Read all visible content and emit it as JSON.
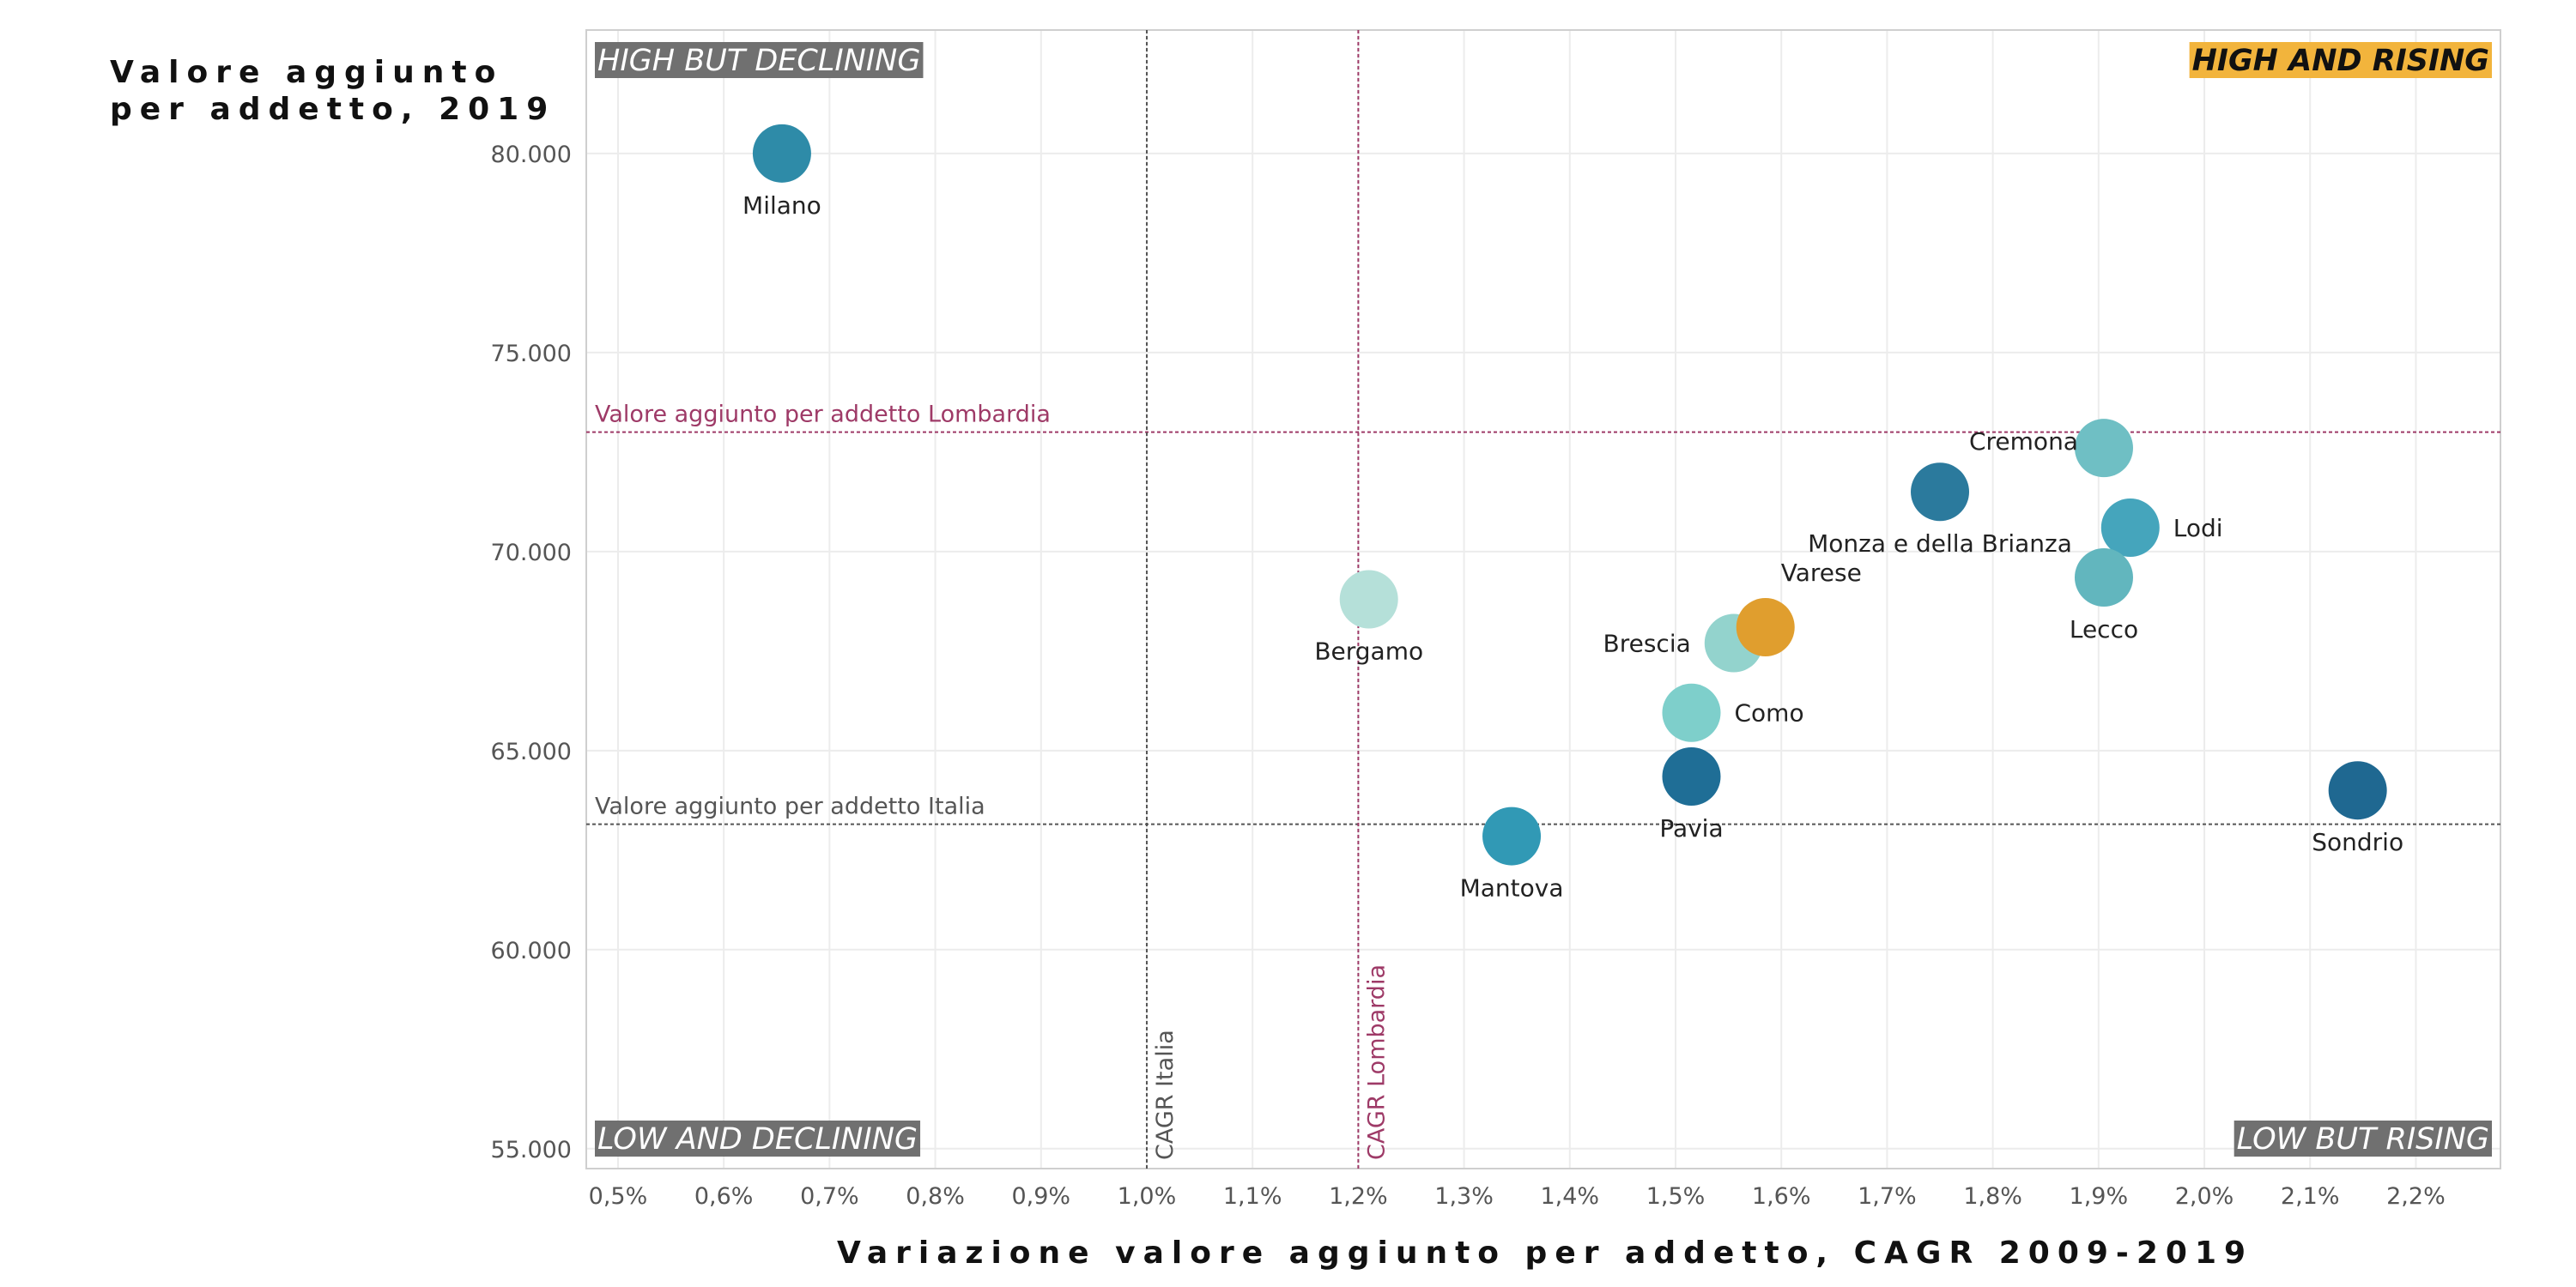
{
  "chart_data": {
    "type": "scatter",
    "xlabel": "Variazione valore aggiunto per addetto, CAGR 2009-2019",
    "ylabel_lines": [
      "Valore aggiunto",
      "per addetto, 2019"
    ],
    "xlim": [
      0.47,
      2.28
    ],
    "ylim": [
      54.5,
      83.1
    ],
    "x_ticks": [
      {
        "value": 0.5,
        "label": "0,5%"
      },
      {
        "value": 0.6,
        "label": "0,6%"
      },
      {
        "value": 0.7,
        "label": "0,7%"
      },
      {
        "value": 0.8,
        "label": "0,8%"
      },
      {
        "value": 0.9,
        "label": "0,9%"
      },
      {
        "value": 1.0,
        "label": "1,0%"
      },
      {
        "value": 1.1,
        "label": "1,1%"
      },
      {
        "value": 1.2,
        "label": "1,2%"
      },
      {
        "value": 1.3,
        "label": "1,3%"
      },
      {
        "value": 1.4,
        "label": "1,4%"
      },
      {
        "value": 1.5,
        "label": "1,5%"
      },
      {
        "value": 1.6,
        "label": "1,6%"
      },
      {
        "value": 1.7,
        "label": "1,7%"
      },
      {
        "value": 1.8,
        "label": "1,8%"
      },
      {
        "value": 1.9,
        "label": "1,9%"
      },
      {
        "value": 2.0,
        "label": "2,0%"
      },
      {
        "value": 2.1,
        "label": "2,1%"
      },
      {
        "value": 2.2,
        "label": "2,2%"
      }
    ],
    "y_ticks": [
      {
        "value": 55,
        "label": "55.000"
      },
      {
        "value": 60,
        "label": "60.000"
      },
      {
        "value": 65,
        "label": "65.000"
      },
      {
        "value": 70,
        "label": "70.000"
      },
      {
        "value": 75,
        "label": "75.000"
      },
      {
        "value": 80,
        "label": "80.000"
      }
    ],
    "grid": true,
    "points": [
      {
        "name": "Milano",
        "x": 0.655,
        "y": 80.0,
        "color": "#2E8BA8",
        "label_pos": "below"
      },
      {
        "name": "Bergamo",
        "x": 1.21,
        "y": 68.8,
        "color": "#B5E0D9",
        "label_pos": "below"
      },
      {
        "name": "Brescia",
        "x": 1.555,
        "y": 67.7,
        "color": "#93D3CD",
        "label_pos": "left"
      },
      {
        "name": "Varese",
        "x": 1.585,
        "y": 68.1,
        "color": "#E09E2E",
        "label_pos": "above-right"
      },
      {
        "name": "Como",
        "x": 1.515,
        "y": 65.95,
        "color": "#7ECFCB",
        "label_pos": "right"
      },
      {
        "name": "Pavia",
        "x": 1.515,
        "y": 64.35,
        "color": "#1F6E96",
        "label_pos": "below"
      },
      {
        "name": "Mantova",
        "x": 1.345,
        "y": 62.85,
        "color": "#3199B5",
        "label_pos": "below"
      },
      {
        "name": "Monza e della Brianza",
        "x": 1.75,
        "y": 71.5,
        "color": "#2B7A9D",
        "label_pos": "below"
      },
      {
        "name": "Cremona",
        "x": 1.905,
        "y": 72.6,
        "color": "#6FBFC4",
        "label_pos": "left"
      },
      {
        "name": "Lodi",
        "x": 1.93,
        "y": 70.6,
        "color": "#45A5BC",
        "label_pos": "right"
      },
      {
        "name": "Lecco",
        "x": 1.905,
        "y": 69.35,
        "color": "#62B6BE",
        "label_pos": "below"
      },
      {
        "name": "Sondrio",
        "x": 2.145,
        "y": 64.0,
        "color": "#1F6891",
        "label_pos": "below"
      }
    ],
    "reference_lines": [
      {
        "axis": "y",
        "value": 73.0,
        "label": "Valore aggiunto per addetto Lombardia",
        "color": "#9E3A67"
      },
      {
        "axis": "y",
        "value": 63.15,
        "label": "Valore aggiunto per addetto Italia",
        "color": "#555555"
      },
      {
        "axis": "x",
        "value": 1.0,
        "label": "CAGR Italia",
        "color": "#555555"
      },
      {
        "axis": "x",
        "value": 1.2,
        "label": "CAGR Lombardia",
        "color": "#9E3A67"
      }
    ],
    "quadrant_labels": [
      {
        "text": "HIGH BUT DECLINING",
        "corner": "top-left",
        "bg": "#707070",
        "fg": "#ffffff"
      },
      {
        "text": "HIGH AND RISING",
        "corner": "top-right",
        "bg": "#F2B43C",
        "fg": "#111111"
      },
      {
        "text": "LOW AND DECLINING",
        "corner": "bottom-left",
        "bg": "#707070",
        "fg": "#ffffff"
      },
      {
        "text": "LOW BUT RISING",
        "corner": "bottom-right",
        "bg": "#707070",
        "fg": "#ffffff"
      }
    ]
  }
}
